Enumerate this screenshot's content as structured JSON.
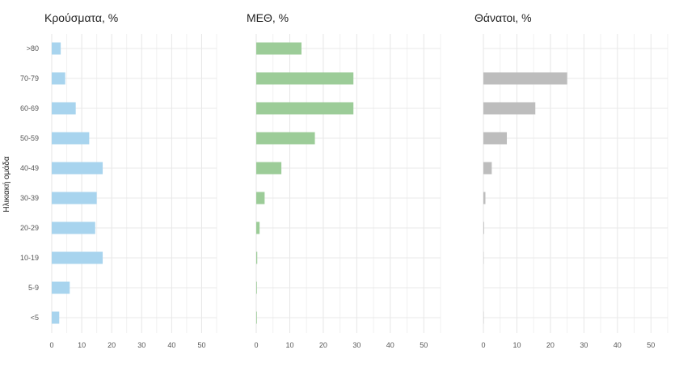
{
  "chart_data": {
    "type": "bar",
    "orientation": "horizontal",
    "ylabel": "Ηλικιακή ομάδα",
    "categories": [
      ">80",
      "70-79",
      "60-69",
      "50-59",
      "40-49",
      "30-39",
      "20-29",
      "10-19",
      "5-9",
      "<5"
    ],
    "xlim": [
      0,
      55
    ],
    "xticks": [
      0,
      10,
      20,
      30,
      40,
      50
    ],
    "grid": true,
    "panels": [
      {
        "title": "Κρούσματα, %",
        "color": "#a8d4ee",
        "values": [
          3,
          4.5,
          8,
          12.5,
          17,
          15,
          14.5,
          17,
          6,
          2.5
        ]
      },
      {
        "title": "ΜΕΘ, %",
        "color": "#9ccc98",
        "values": [
          13.5,
          29,
          29,
          17.5,
          7.5,
          2.5,
          1,
          0.3,
          0.2,
          0.2
        ]
      },
      {
        "title": "Θάνατοι, %",
        "color": "#bdbdbd",
        "values": [
          0,
          25,
          15.5,
          7,
          2.5,
          0.6,
          0.2,
          0.1,
          0,
          0.1
        ]
      }
    ]
  }
}
